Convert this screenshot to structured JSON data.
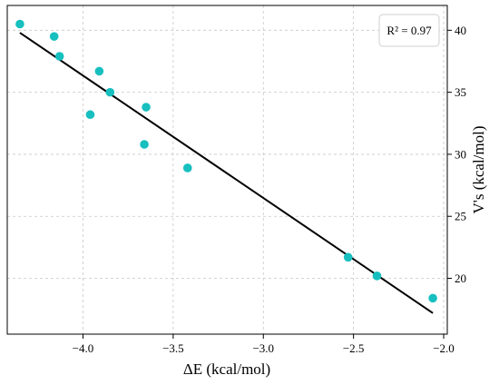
{
  "chart_data": {
    "type": "scatter",
    "xlabel": "ΔE (kcal/mol)",
    "ylabel": "V's (kcal/mol)",
    "xlim": [
      -4.42,
      -1.98
    ],
    "ylim": [
      15.5,
      42.0
    ],
    "x_ticks": [
      -4.0,
      -3.5,
      -3.0,
      -2.5,
      -2.0
    ],
    "x_tick_labels": [
      "−4.0",
      "−3.5",
      "−3.0",
      "−2.5",
      "−2.0"
    ],
    "y_ticks": [
      20,
      25,
      30,
      35,
      40
    ],
    "y_tick_labels": [
      "20",
      "25",
      "30",
      "35",
      "40"
    ],
    "y_axis_position": "right",
    "grid": true,
    "legend_position": "top-right",
    "annotation": "R² = 0.97",
    "points_color": "#17bfbf",
    "fit_color": "#000000",
    "series": [
      {
        "type": "scatter",
        "x": [
          -4.35,
          -4.16,
          -4.13,
          -3.91,
          -3.96,
          -3.85,
          -3.65,
          -3.66,
          -3.42,
          -2.53,
          -2.37,
          -2.06
        ],
        "y": [
          40.5,
          39.5,
          37.9,
          36.7,
          33.2,
          35.0,
          33.8,
          30.8,
          28.9,
          21.7,
          20.2,
          18.4
        ]
      },
      {
        "type": "line",
        "x": [
          -4.35,
          -2.06
        ],
        "y": [
          39.8,
          17.2
        ]
      }
    ]
  }
}
